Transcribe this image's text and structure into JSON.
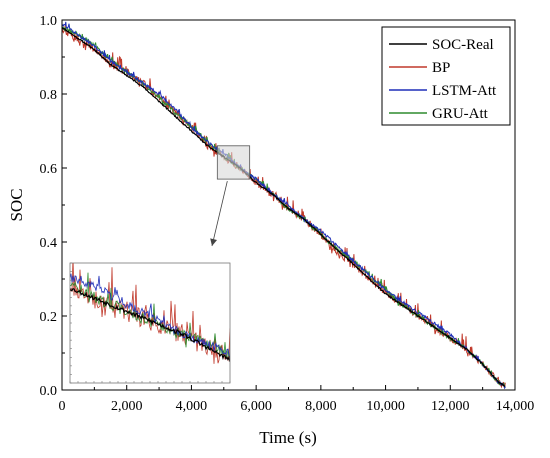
{
  "chart_data": {
    "type": "line",
    "title": "",
    "xlabel": "Time (s)",
    "ylabel": "SOC",
    "xlim": [
      0,
      14000
    ],
    "ylim": [
      0.0,
      1.0
    ],
    "xticks": [
      0,
      2000,
      4000,
      6000,
      8000,
      10000,
      12000,
      14000
    ],
    "xtick_labels": [
      "0",
      "2,000",
      "4,000",
      "6,000",
      "8,000",
      "10,000",
      "12,000",
      "14,000"
    ],
    "yticks": [
      0.0,
      0.2,
      0.4,
      0.6,
      0.8,
      1.0
    ],
    "ytick_labels": [
      "0.0",
      "0.2",
      "0.4",
      "0.6",
      "0.8",
      "1.0"
    ],
    "grid": false,
    "legend_position": "top-right",
    "series": [
      {
        "name": "SOC-Real",
        "color": "#000000",
        "x": [
          0,
          500,
          1000,
          1500,
          2000,
          2500,
          3000,
          3500,
          4000,
          4500,
          5000,
          5500,
          6000,
          6500,
          7000,
          7500,
          8000,
          8500,
          9000,
          9500,
          10000,
          10500,
          11000,
          11500,
          12000,
          12500,
          13000,
          13500,
          13700
        ],
        "y": [
          0.98,
          0.95,
          0.92,
          0.88,
          0.85,
          0.82,
          0.78,
          0.74,
          0.7,
          0.66,
          0.63,
          0.6,
          0.56,
          0.53,
          0.49,
          0.46,
          0.42,
          0.38,
          0.34,
          0.3,
          0.26,
          0.23,
          0.2,
          0.17,
          0.14,
          0.11,
          0.07,
          0.02,
          0.01
        ]
      },
      {
        "name": "BP",
        "color": "#c0392b",
        "x": [
          0,
          500,
          1000,
          1500,
          2000,
          2500,
          3000,
          3500,
          4000,
          4500,
          5000,
          5500,
          6000,
          6500,
          7000,
          7500,
          8000,
          8500,
          9000,
          9500,
          10000,
          10500,
          11000,
          11500,
          12000,
          12500,
          13000,
          13500,
          13700
        ],
        "y": [
          0.97,
          0.95,
          0.92,
          0.88,
          0.86,
          0.83,
          0.79,
          0.75,
          0.71,
          0.66,
          0.63,
          0.6,
          0.56,
          0.53,
          0.49,
          0.46,
          0.42,
          0.37,
          0.34,
          0.3,
          0.26,
          0.23,
          0.2,
          0.17,
          0.14,
          0.11,
          0.07,
          0.02,
          0.01
        ]
      },
      {
        "name": "LSTM-Att",
        "color": "#1f2fb8",
        "x": [
          0,
          500,
          1000,
          1500,
          2000,
          2500,
          3000,
          3500,
          4000,
          4500,
          5000,
          5500,
          6000,
          6500,
          7000,
          7500,
          8000,
          8500,
          9000,
          9500,
          10000,
          10500,
          11000,
          11500,
          12000,
          12500,
          13000,
          13500,
          13700
        ],
        "y": [
          0.99,
          0.96,
          0.93,
          0.89,
          0.86,
          0.83,
          0.8,
          0.76,
          0.71,
          0.67,
          0.64,
          0.6,
          0.57,
          0.53,
          0.5,
          0.46,
          0.43,
          0.39,
          0.35,
          0.31,
          0.27,
          0.24,
          0.21,
          0.18,
          0.15,
          0.11,
          0.07,
          0.02,
          0.01
        ]
      },
      {
        "name": "GRU-Att",
        "color": "#2e8b2e",
        "x": [
          0,
          500,
          1000,
          1500,
          2000,
          2500,
          3000,
          3500,
          4000,
          4500,
          5000,
          5500,
          6000,
          6500,
          7000,
          7500,
          8000,
          8500,
          9000,
          9500,
          10000,
          10500,
          11000,
          11500,
          12000,
          12500,
          13000,
          13500,
          13700
        ],
        "y": [
          0.98,
          0.96,
          0.93,
          0.89,
          0.86,
          0.83,
          0.79,
          0.75,
          0.71,
          0.67,
          0.63,
          0.6,
          0.57,
          0.53,
          0.49,
          0.46,
          0.42,
          0.38,
          0.35,
          0.31,
          0.27,
          0.23,
          0.2,
          0.17,
          0.14,
          0.11,
          0.07,
          0.02,
          0.01
        ]
      }
    ],
    "inset": {
      "zoom_x_range": [
        4800,
        5800
      ],
      "zoom_y_range": [
        0.57,
        0.66
      ]
    }
  }
}
